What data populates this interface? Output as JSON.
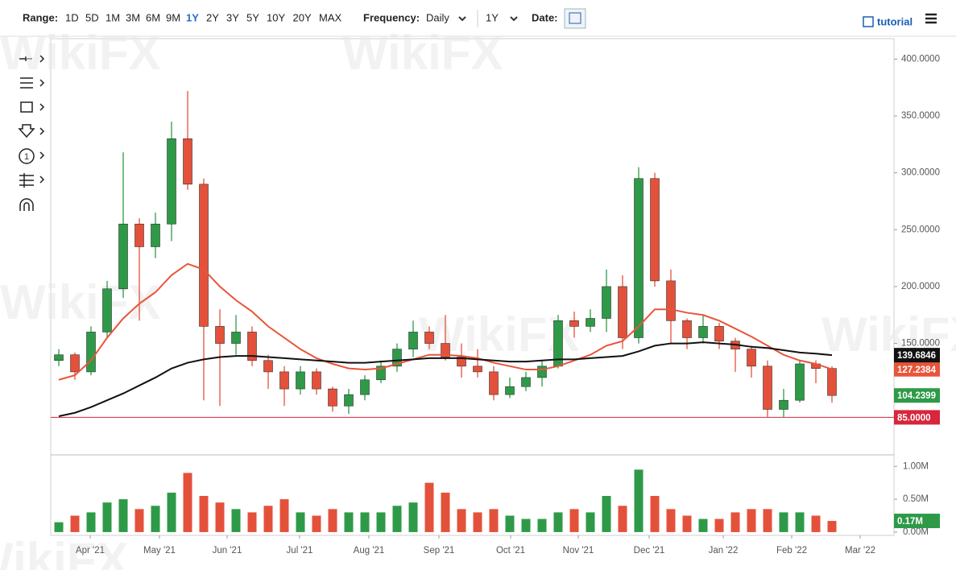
{
  "toolbar": {
    "range_label": "Range:",
    "ranges": [
      "1D",
      "5D",
      "1M",
      "3M",
      "6M",
      "9M",
      "1Y",
      "2Y",
      "3Y",
      "5Y",
      "10Y",
      "20Y",
      "MAX"
    ],
    "active_range": "1Y",
    "frequency_label": "Frequency:",
    "frequency": "Daily",
    "period": "1Y",
    "date_label": "Date:",
    "tutorial": "tutorial"
  },
  "sidebar": {
    "count_icon": "1"
  },
  "watermark": "WikiFX",
  "chart_data": {
    "type": "candlestick",
    "categories": [
      null,
      null,
      null,
      null,
      null,
      null,
      null,
      null,
      null,
      null,
      null,
      null,
      null,
      null,
      null,
      null,
      null,
      null,
      null,
      null,
      null,
      null,
      null,
      null,
      null,
      null,
      null,
      null,
      null,
      null,
      null,
      null,
      null,
      null,
      null,
      null,
      null,
      null,
      null,
      null,
      null,
      null,
      null,
      null,
      null,
      null,
      null,
      null,
      null
    ],
    "open": [
      135,
      140,
      125,
      160,
      198,
      255,
      235,
      255,
      330,
      290,
      165,
      150,
      160,
      135,
      125,
      110,
      125,
      110,
      95,
      105,
      118,
      130,
      145,
      160,
      150,
      138,
      130,
      125,
      105,
      112,
      120,
      130,
      170,
      165,
      172,
      200,
      155,
      295,
      205,
      170,
      155,
      165,
      152,
      145,
      130,
      92,
      100,
      132,
      128
    ],
    "high": [
      145,
      142,
      165,
      205,
      318,
      260,
      265,
      345,
      372,
      295,
      180,
      175,
      165,
      140,
      130,
      130,
      128,
      112,
      110,
      122,
      135,
      150,
      170,
      165,
      175,
      150,
      145,
      130,
      120,
      125,
      135,
      175,
      178,
      180,
      215,
      210,
      305,
      300,
      215,
      172,
      175,
      168,
      155,
      148,
      135,
      110,
      135,
      135,
      130
    ],
    "low": [
      130,
      118,
      122,
      155,
      190,
      170,
      225,
      240,
      285,
      100,
      95,
      140,
      130,
      110,
      95,
      105,
      105,
      90,
      88,
      100,
      115,
      125,
      138,
      145,
      135,
      120,
      120,
      100,
      102,
      108,
      112,
      128,
      155,
      160,
      160,
      145,
      150,
      200,
      150,
      145,
      150,
      145,
      125,
      120,
      85,
      85,
      98,
      115,
      98
    ],
    "close": [
      140,
      125,
      160,
      198,
      255,
      235,
      255,
      330,
      290,
      165,
      150,
      160,
      135,
      125,
      110,
      125,
      110,
      95,
      105,
      118,
      130,
      145,
      160,
      150,
      138,
      130,
      125,
      105,
      112,
      120,
      130,
      170,
      165,
      172,
      200,
      155,
      295,
      205,
      170,
      155,
      165,
      152,
      145,
      130,
      92,
      100,
      132,
      128,
      104.2399
    ],
    "up_color": "#2e9a48",
    "down_color": "#e4513b",
    "ylim": [
      52,
      418
    ],
    "yticks": [
      {
        "value": 150,
        "label": "150.0000"
      },
      {
        "value": 200,
        "label": "200.0000"
      },
      {
        "value": 250,
        "label": "250.0000"
      },
      {
        "value": 300,
        "label": "300.0000"
      },
      {
        "value": 350,
        "label": "350.0000"
      },
      {
        "value": 400,
        "label": "400.0000"
      }
    ],
    "last_label": "104.2399",
    "lines": [
      {
        "color": "#e8553a",
        "last_label": "127.2384",
        "values": [
          118,
          122,
          135,
          155,
          172,
          185,
          195,
          210,
          220,
          215,
          200,
          188,
          178,
          165,
          155,
          145,
          137,
          132,
          128,
          127,
          128,
          132,
          136,
          140,
          140,
          139,
          137,
          133,
          130,
          127,
          127,
          130,
          135,
          140,
          148,
          152,
          165,
          180,
          180,
          177,
          175,
          170,
          163,
          156,
          148,
          140,
          135,
          132,
          127.2384
        ]
      },
      {
        "color": "#111111",
        "last_label": "139.6846",
        "values": [
          86,
          89,
          94,
          100,
          106,
          113,
          120,
          128,
          133,
          136,
          138,
          139,
          139,
          138,
          137,
          136,
          135,
          134,
          133,
          133,
          134,
          135,
          136,
          137,
          137,
          137,
          136,
          135,
          134,
          134,
          135,
          136,
          136,
          137,
          138,
          139,
          143,
          148,
          150,
          150,
          151,
          150,
          149,
          147,
          146,
          144,
          142,
          141,
          139.6846
        ]
      }
    ],
    "price_line": {
      "value": 85,
      "label": "85.0000",
      "color": "#d7263d"
    },
    "volume": {
      "values": [
        0.15,
        0.25,
        0.3,
        0.45,
        0.5,
        0.35,
        0.4,
        0.6,
        0.9,
        0.55,
        0.45,
        0.35,
        0.3,
        0.4,
        0.5,
        0.3,
        0.25,
        0.35,
        0.3,
        0.3,
        0.3,
        0.4,
        0.45,
        0.75,
        0.6,
        0.35,
        0.3,
        0.35,
        0.25,
        0.2,
        0.2,
        0.3,
        0.35,
        0.3,
        0.55,
        0.4,
        0.95,
        0.55,
        0.35,
        0.25,
        0.2,
        0.2,
        0.3,
        0.35,
        0.35,
        0.3,
        0.3,
        0.25,
        0.17
      ],
      "ylim": [
        -0.05,
        1.15
      ],
      "yticks": [
        {
          "value": 0,
          "label": "0.00M"
        },
        {
          "value": 0.5,
          "label": "0.50M"
        },
        {
          "value": 1,
          "label": "1.00M"
        }
      ],
      "last_label": "0.17M"
    },
    "xlim": [
      -0.5,
      51.85
    ],
    "xticks": [
      {
        "value": 1.95,
        "label": "Apr '21"
      },
      {
        "value": 6.25,
        "label": "May '21"
      },
      {
        "value": 10.45,
        "label": "Jun '21"
      },
      {
        "value": 14.95,
        "label": "Jul '21"
      },
      {
        "value": 19.25,
        "label": "Aug '21"
      },
      {
        "value": 23.6,
        "label": "Sep '21"
      },
      {
        "value": 28.05,
        "label": "Oct '21"
      },
      {
        "value": 32.25,
        "label": "Nov '21"
      },
      {
        "value": 36.65,
        "label": "Dec '21"
      },
      {
        "value": 41.25,
        "label": "Jan '22"
      },
      {
        "value": 45.5,
        "label": "Feb '22"
      },
      {
        "value": 49.75,
        "label": "Mar '22"
      }
    ]
  }
}
